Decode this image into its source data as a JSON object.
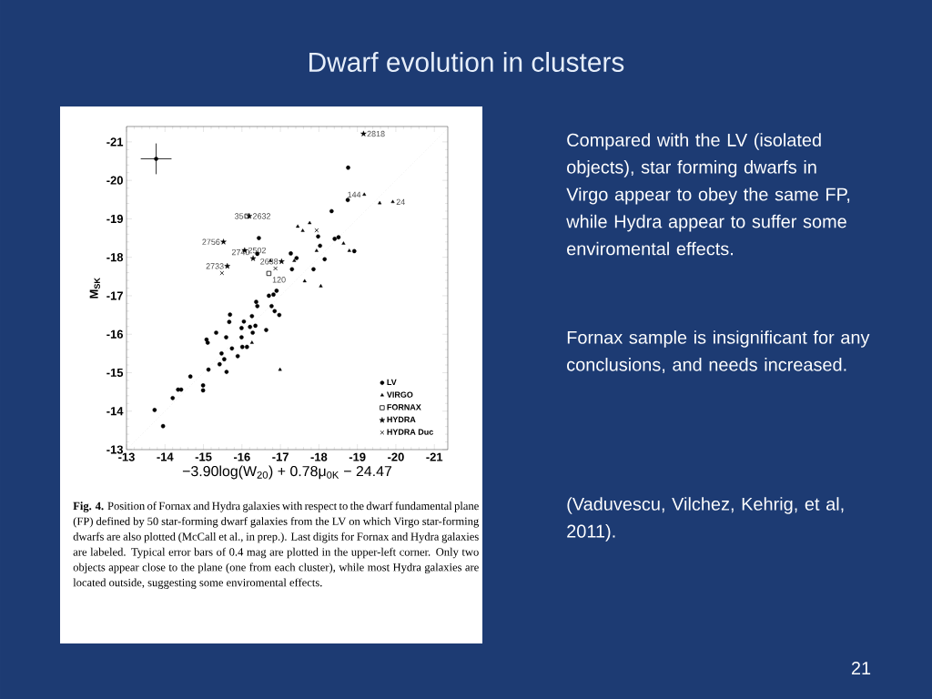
{
  "chart_data": {
    "type": "scatter",
    "title": "Dwarf evolution in clusters",
    "xlabel": "−3.90log(W$_{20}$) + 0.78μ$_{0K}$ − 24.47",
    "ylabel": "M$_{SK}$",
    "xlim": [
      -13,
      -21.35
    ],
    "ylim": [
      -13,
      -21.4
    ],
    "xticks": [
      -13,
      -14,
      -15,
      -16,
      -17,
      -18,
      -19,
      -20,
      -21
    ],
    "yticks": [
      -13,
      -14,
      -15,
      -16,
      -17,
      -18,
      -19,
      -20,
      -21
    ],
    "legend": "bottom right",
    "series": [
      {
        "type": "line",
        "line_style": "dotted",
        "color": "#b0b0b0",
        "x": [
          -13,
          -21.35
        ],
        "values": [
          -13,
          -21.35
        ]
      },
      {
        "name": "LV",
        "marker": "circle",
        "color": "#000000",
        "x": [
          -13.73,
          -13.95,
          -14.2,
          -14.34,
          -14.42,
          -14.66,
          -14.99,
          -14.99,
          -15.08,
          -15.11,
          -15.13,
          -15.33,
          -15.42,
          -15.47,
          -15.54,
          -15.6,
          -15.59,
          -15.67,
          -15.69,
          -15.74,
          -15.89,
          -15.99,
          -15.99,
          -16.01,
          -16.05,
          -16.13,
          -16.21,
          -16.26,
          -16.28,
          -16.35,
          -16.37,
          -16.4,
          -16.63,
          -16.7,
          -16.82,
          -16.9,
          -16.77,
          -16.85,
          -16.97,
          -18.76,
          -18.75,
          -18.33,
          -17.98,
          -18.03,
          -18.41,
          -18.51,
          -18.92,
          -18.15,
          -17.27,
          -17.42,
          -17.3,
          -17.86,
          -16.44,
          -16.4
        ],
        "values": [
          -14.03,
          -13.61,
          -14.34,
          -14.56,
          -14.56,
          -14.9,
          -14.67,
          -14.54,
          -15.86,
          -15.78,
          -15.08,
          -16.04,
          -15.22,
          -15.5,
          -15.35,
          -15.02,
          -15.92,
          -16.32,
          -16.51,
          -15.63,
          -15.43,
          -16.16,
          -15.92,
          -15.67,
          -16.33,
          -15.67,
          -16.19,
          -16.47,
          -16.04,
          -16.22,
          -16.84,
          -16.73,
          -16.11,
          -17.0,
          -17.03,
          -17.13,
          -16.73,
          -16.6,
          -16.5,
          -20.33,
          -19.49,
          -19.2,
          -18.54,
          -18.3,
          -18.48,
          -18.52,
          -18.16,
          -17.95,
          -18.1,
          -17.98,
          -17.69,
          -17.69,
          -18.5,
          -18.09
        ]
      },
      {
        "name": "VIRGO",
        "marker": "triangle",
        "color": "#000000",
        "x": [
          -17.45,
          -17.76,
          -17.58,
          -19.18,
          -19.58,
          -19.92,
          -18.64,
          -18.79,
          -17.94,
          -17.36,
          -17.63,
          -18.05,
          -16.99,
          -16.26,
          -16.74
        ],
        "values": [
          -18.8,
          -18.89,
          -18.69,
          -19.63,
          -19.41,
          -19.44,
          -18.36,
          -18.17,
          -18.17,
          -17.91,
          -17.38,
          -17.25,
          -15.08,
          -15.78,
          -17.91
        ]
      },
      {
        "name": "FORNAX",
        "marker": "square",
        "color": "#000000",
        "x": [
          -16.13,
          -16.7
        ],
        "values": [
          -19.07,
          -17.58
        ]
      },
      {
        "name": "HYDRA",
        "marker": "star",
        "color": "#000000",
        "x": [
          -16.19,
          -15.52,
          -16.07,
          -16.29,
          -15.62,
          -17.03,
          -19.16
        ],
        "values": [
          -19.07,
          -18.4,
          -18.18,
          -17.97,
          -17.77,
          -17.89,
          -21.21
        ]
      },
      {
        "name": "HYDRA Duc",
        "marker": "cross",
        "color": "#000000",
        "x": [
          -15.48,
          -16.87,
          -17.94
        ],
        "values": [
          -17.59,
          -17.71,
          -18.7
        ]
      },
      {
        "marker": "none",
        "color": "#000000",
        "x": [
          -13.77
        ],
        "values": [
          -20.56
        ],
        "errors": [
          0.4
        ],
        "xerrors": [
          0.4
        ]
      }
    ],
    "annotations": [
      {
        "text": "2818",
        "x": -19.16,
        "y": -21.21
      },
      {
        "text": "144",
        "x": -19.18,
        "y": -19.63
      },
      {
        "text": "24",
        "x": -19.92,
        "y": -19.44
      },
      {
        "text": "35",
        "x": -16.13,
        "y": -19.07
      },
      {
        "text": "2632",
        "x": -16.19,
        "y": -19.07
      },
      {
        "text": "2756",
        "x": -15.52,
        "y": -18.4
      },
      {
        "text": "2502",
        "x": -16.07,
        "y": -18.18
      },
      {
        "text": "2733",
        "x": -15.62,
        "y": -17.77
      },
      {
        "text": "2740",
        "x": -16.29,
        "y": -17.97
      },
      {
        "text": "2638",
        "x": -17.03,
        "y": -17.89
      },
      {
        "text": "120",
        "x": -16.7,
        "y": -17.58
      },
      "Compared with the LV (isolated objects), star forming dwarfs in Virgo appear to obey the same FP, while Hydra appear to suffer some enviromental effects.",
      "Fornax sample is insignificant for any conclusions, and needs increased.",
      "(Vaduvescu, Vilchez, Kehrig, et al, 2011).",
      "**Fig. 4.** Position of Fornax and Hydra galaxies with respect to the dwarf fundamental plane (FP) defined by 50 star-forming dwarf galaxies from the LV on which Virgo star-forming dwarfs are also plotted (McCall et al., in prep.). Last digits for Fornax and Hydra galaxies are labeled. Typical error bars of 0.4 mag are plotted in the upper-left corner. Only two objects appear close to the plane (one from each cluster), while most Hydra galaxies are located outside, suggesting some enviromental effects.",
      "21"
    ]
  }
}
